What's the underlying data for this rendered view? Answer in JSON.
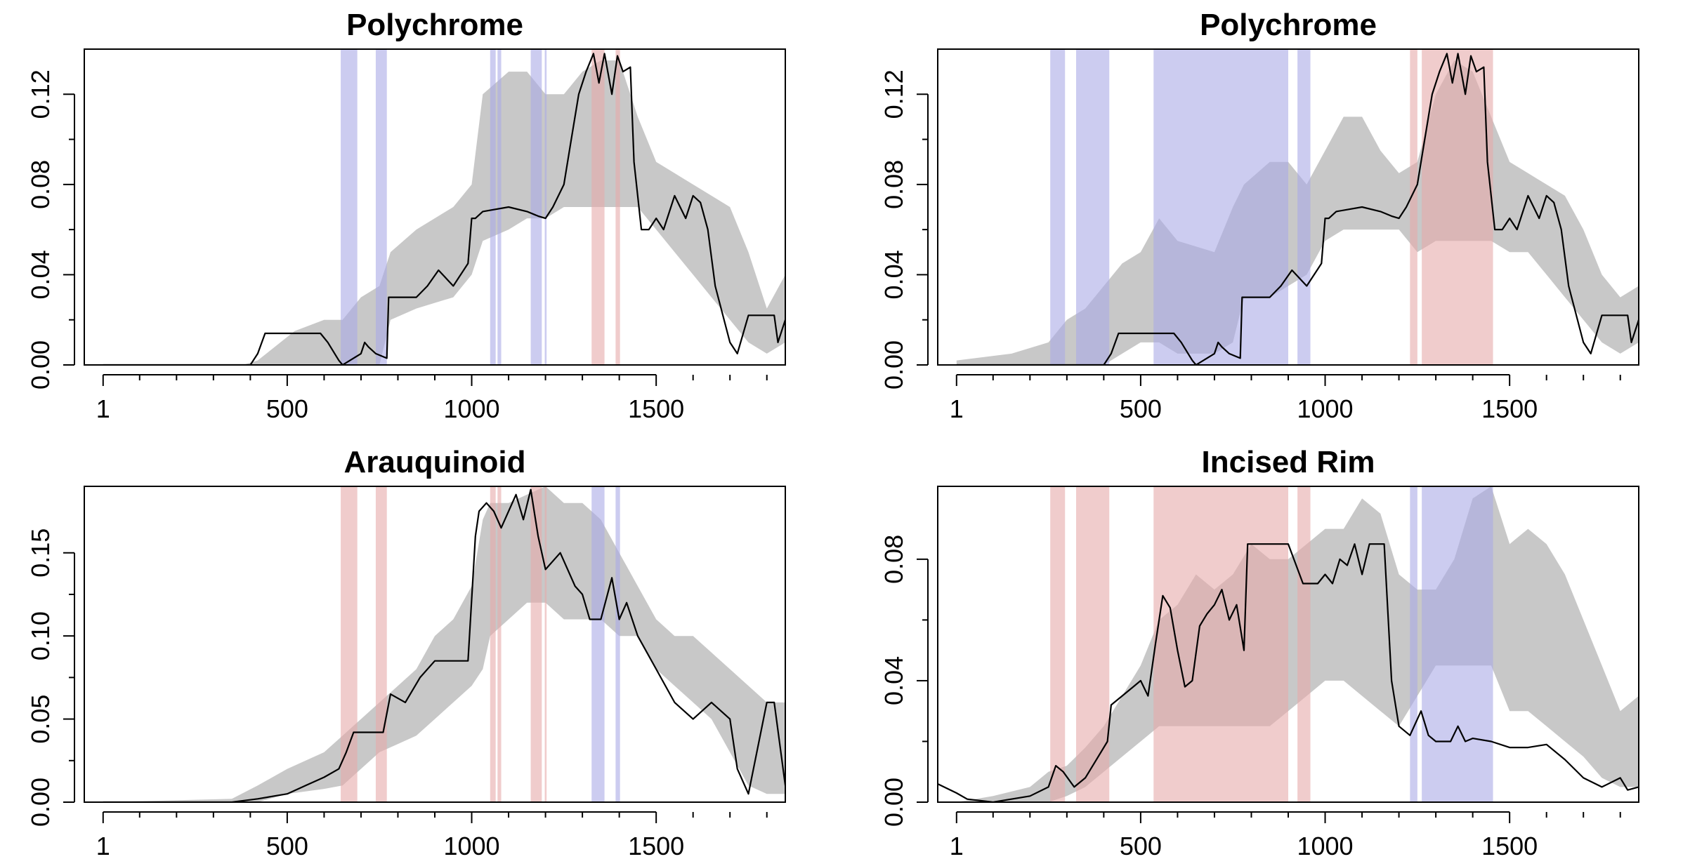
{
  "colors": {
    "ribbon": "#c8c8c8",
    "mean_line": "#000000",
    "blue_band": "#aaaae6",
    "red_band": "#e6aaaa",
    "frame": "#000000"
  },
  "chart_data": [
    {
      "type": "area",
      "title": "Polychrome",
      "xlim": [
        -50,
        1850
      ],
      "ylim": [
        0,
        0.14
      ],
      "x_ticks": [
        1,
        500,
        1000,
        1500
      ],
      "x_tick_labels": [
        "1",
        "500",
        "1000",
        "1500"
      ],
      "y_ticks": [
        0,
        0.04,
        0.08,
        0.12
      ],
      "y_tick_labels": [
        "0.00",
        "0.04",
        "0.08",
        "0.12"
      ],
      "bands": [
        {
          "from": 645,
          "to": 690,
          "color": "blue"
        },
        {
          "from": 740,
          "to": 770,
          "color": "blue"
        },
        {
          "from": 1050,
          "to": 1065,
          "color": "blue"
        },
        {
          "from": 1070,
          "to": 1080,
          "color": "blue"
        },
        {
          "from": 1160,
          "to": 1190,
          "color": "blue"
        },
        {
          "from": 1198,
          "to": 1203,
          "color": "blue"
        },
        {
          "from": 1325,
          "to": 1360,
          "color": "red"
        },
        {
          "from": 1390,
          "to": 1402,
          "color": "red"
        }
      ],
      "ribbon": {
        "x": [
          1,
          380,
          420,
          520,
          600,
          650,
          700,
          750,
          780,
          850,
          950,
          1000,
          1030,
          1100,
          1150,
          1200,
          1250,
          1300,
          1350,
          1400,
          1450,
          1500,
          1550,
          1600,
          1650,
          1700,
          1750,
          1800,
          1850
        ],
        "lower": [
          0,
          0,
          0,
          0,
          0,
          0,
          0,
          0,
          0.02,
          0.025,
          0.03,
          0.04,
          0.055,
          0.06,
          0.065,
          0.065,
          0.07,
          0.07,
          0.07,
          0.07,
          0.07,
          0.06,
          0.05,
          0.04,
          0.03,
          0.02,
          0.01,
          0.005,
          0.01
        ],
        "upper": [
          0,
          0,
          0.002,
          0.015,
          0.02,
          0.02,
          0.03,
          0.035,
          0.05,
          0.06,
          0.07,
          0.08,
          0.12,
          0.13,
          0.13,
          0.12,
          0.12,
          0.13,
          0.135,
          0.135,
          0.11,
          0.09,
          0.085,
          0.08,
          0.075,
          0.07,
          0.05,
          0.025,
          0.04
        ]
      },
      "mean": {
        "x": [
          1,
          400,
          420,
          440,
          590,
          610,
          640,
          650,
          700,
          710,
          720,
          740,
          770,
          775,
          800,
          850,
          880,
          910,
          950,
          990,
          1000,
          1010,
          1030,
          1100,
          1150,
          1180,
          1200,
          1220,
          1250,
          1270,
          1290,
          1310,
          1330,
          1345,
          1360,
          1380,
          1395,
          1410,
          1430,
          1440,
          1460,
          1480,
          1500,
          1520,
          1550,
          1580,
          1600,
          1620,
          1640,
          1660,
          1700,
          1720,
          1750,
          1800,
          1820,
          1830,
          1850
        ],
        "y": [
          0,
          0,
          0.005,
          0.014,
          0.014,
          0.01,
          0.002,
          0,
          0.005,
          0.01,
          0.008,
          0.005,
          0.003,
          0.03,
          0.03,
          0.03,
          0.035,
          0.042,
          0.035,
          0.045,
          0.065,
          0.065,
          0.068,
          0.07,
          0.068,
          0.066,
          0.065,
          0.07,
          0.08,
          0.1,
          0.12,
          0.13,
          0.138,
          0.125,
          0.138,
          0.12,
          0.137,
          0.13,
          0.132,
          0.09,
          0.06,
          0.06,
          0.065,
          0.06,
          0.075,
          0.065,
          0.075,
          0.072,
          0.06,
          0.035,
          0.01,
          0.005,
          0.022,
          0.022,
          0.022,
          0.01,
          0.02
        ]
      }
    },
    {
      "type": "area",
      "title": "Polychrome",
      "xlim": [
        -50,
        1850
      ],
      "ylim": [
        0,
        0.14
      ],
      "x_ticks": [
        1,
        500,
        1000,
        1500
      ],
      "x_tick_labels": [
        "1",
        "500",
        "1000",
        "1500"
      ],
      "y_ticks": [
        0,
        0.04,
        0.08,
        0.12
      ],
      "y_tick_labels": [
        "0.00",
        "0.04",
        "0.08",
        "0.12"
      ],
      "bands": [
        {
          "from": 255,
          "to": 295,
          "color": "blue"
        },
        {
          "from": 325,
          "to": 415,
          "color": "blue"
        },
        {
          "from": 535,
          "to": 900,
          "color": "blue"
        },
        {
          "from": 925,
          "to": 960,
          "color": "blue"
        },
        {
          "from": 1230,
          "to": 1250,
          "color": "red"
        },
        {
          "from": 1262,
          "to": 1455,
          "color": "red"
        }
      ],
      "ribbon": {
        "x": [
          1,
          150,
          250,
          300,
          350,
          400,
          450,
          500,
          550,
          600,
          700,
          750,
          780,
          850,
          900,
          950,
          1000,
          1050,
          1100,
          1150,
          1200,
          1250,
          1300,
          1350,
          1400,
          1450,
          1500,
          1550,
          1600,
          1650,
          1700,
          1750,
          1800,
          1850
        ],
        "lower": [
          0,
          0,
          0,
          0,
          0,
          0,
          0.005,
          0.01,
          0.01,
          0.005,
          0.005,
          0.01,
          0.03,
          0.03,
          0.035,
          0.04,
          0.055,
          0.06,
          0.06,
          0.06,
          0.06,
          0.05,
          0.055,
          0.055,
          0.055,
          0.055,
          0.05,
          0.05,
          0.04,
          0.03,
          0.02,
          0.01,
          0.005,
          0.01
        ],
        "upper": [
          0.002,
          0.005,
          0.01,
          0.02,
          0.025,
          0.035,
          0.045,
          0.05,
          0.065,
          0.055,
          0.05,
          0.07,
          0.08,
          0.09,
          0.09,
          0.08,
          0.095,
          0.11,
          0.11,
          0.095,
          0.085,
          0.09,
          0.12,
          0.135,
          0.13,
          0.11,
          0.09,
          0.085,
          0.08,
          0.075,
          0.06,
          0.04,
          0.03,
          0.035
        ]
      },
      "mean": {
        "x": [
          1,
          350,
          400,
          420,
          440,
          590,
          610,
          640,
          650,
          700,
          710,
          720,
          740,
          770,
          775,
          800,
          850,
          880,
          910,
          950,
          990,
          1000,
          1010,
          1030,
          1100,
          1150,
          1180,
          1200,
          1220,
          1250,
          1270,
          1290,
          1310,
          1330,
          1345,
          1360,
          1380,
          1395,
          1410,
          1430,
          1440,
          1460,
          1480,
          1500,
          1520,
          1550,
          1580,
          1600,
          1620,
          1640,
          1660,
          1700,
          1720,
          1750,
          1800,
          1820,
          1830,
          1850
        ],
        "y": [
          0,
          0,
          0,
          0.005,
          0.014,
          0.014,
          0.01,
          0.002,
          0,
          0.005,
          0.01,
          0.008,
          0.005,
          0.003,
          0.03,
          0.03,
          0.03,
          0.035,
          0.042,
          0.035,
          0.045,
          0.065,
          0.065,
          0.068,
          0.07,
          0.068,
          0.066,
          0.065,
          0.07,
          0.08,
          0.1,
          0.12,
          0.13,
          0.138,
          0.125,
          0.138,
          0.12,
          0.137,
          0.13,
          0.132,
          0.09,
          0.06,
          0.06,
          0.065,
          0.06,
          0.075,
          0.065,
          0.075,
          0.072,
          0.06,
          0.035,
          0.01,
          0.005,
          0.022,
          0.022,
          0.022,
          0.01,
          0.02
        ]
      }
    },
    {
      "type": "area",
      "title": "Arauquinoid",
      "xlim": [
        -50,
        1850
      ],
      "ylim": [
        0,
        0.19
      ],
      "x_ticks": [
        1,
        500,
        1000,
        1500
      ],
      "x_tick_labels": [
        "1",
        "500",
        "1000",
        "1500"
      ],
      "y_ticks": [
        0,
        0.05,
        0.1,
        0.15
      ],
      "y_tick_labels": [
        "0.00",
        "0.05",
        "0.10",
        "0.15"
      ],
      "bands": [
        {
          "from": 645,
          "to": 690,
          "color": "red"
        },
        {
          "from": 740,
          "to": 770,
          "color": "red"
        },
        {
          "from": 1050,
          "to": 1065,
          "color": "red"
        },
        {
          "from": 1070,
          "to": 1080,
          "color": "red"
        },
        {
          "from": 1160,
          "to": 1190,
          "color": "red"
        },
        {
          "from": 1198,
          "to": 1203,
          "color": "red"
        },
        {
          "from": 1325,
          "to": 1360,
          "color": "blue"
        },
        {
          "from": 1390,
          "to": 1402,
          "color": "blue"
        }
      ],
      "ribbon": {
        "x": [
          1,
          350,
          420,
          500,
          600,
          650,
          700,
          750,
          800,
          850,
          900,
          950,
          1000,
          1030,
          1050,
          1100,
          1150,
          1200,
          1250,
          1300,
          1350,
          1400,
          1450,
          1500,
          1550,
          1600,
          1650,
          1700,
          1750,
          1800,
          1850
        ],
        "lower": [
          0,
          0,
          0,
          0.005,
          0.008,
          0.01,
          0.02,
          0.03,
          0.035,
          0.04,
          0.05,
          0.06,
          0.07,
          0.08,
          0.1,
          0.11,
          0.12,
          0.12,
          0.11,
          0.11,
          0.11,
          0.1,
          0.1,
          0.08,
          0.07,
          0.06,
          0.05,
          0.03,
          0.01,
          0.005,
          0.005
        ],
        "upper": [
          0,
          0.002,
          0.01,
          0.02,
          0.03,
          0.04,
          0.05,
          0.06,
          0.07,
          0.08,
          0.1,
          0.11,
          0.13,
          0.17,
          0.18,
          0.18,
          0.185,
          0.19,
          0.18,
          0.18,
          0.17,
          0.15,
          0.13,
          0.11,
          0.1,
          0.1,
          0.09,
          0.08,
          0.07,
          0.06,
          0.06
        ]
      },
      "mean": {
        "x": [
          1,
          350,
          420,
          500,
          550,
          600,
          640,
          660,
          680,
          720,
          760,
          780,
          820,
          860,
          900,
          950,
          990,
          1010,
          1020,
          1040,
          1060,
          1080,
          1120,
          1140,
          1160,
          1180,
          1200,
          1240,
          1280,
          1300,
          1320,
          1350,
          1380,
          1400,
          1420,
          1450,
          1500,
          1550,
          1600,
          1650,
          1700,
          1720,
          1750,
          1800,
          1820,
          1850
        ],
        "y": [
          0,
          0,
          0.002,
          0.005,
          0.01,
          0.015,
          0.02,
          0.03,
          0.042,
          0.042,
          0.042,
          0.065,
          0.06,
          0.075,
          0.085,
          0.085,
          0.085,
          0.16,
          0.175,
          0.18,
          0.175,
          0.165,
          0.185,
          0.17,
          0.188,
          0.16,
          0.14,
          0.15,
          0.13,
          0.125,
          0.11,
          0.11,
          0.135,
          0.11,
          0.12,
          0.1,
          0.08,
          0.06,
          0.05,
          0.06,
          0.05,
          0.02,
          0.005,
          0.06,
          0.06,
          0.01
        ]
      }
    },
    {
      "type": "area",
      "title": "Incised Rim",
      "xlim": [
        -50,
        1850
      ],
      "ylim": [
        0,
        0.104
      ],
      "x_ticks": [
        1,
        500,
        1000,
        1500
      ],
      "x_tick_labels": [
        "1",
        "500",
        "1000",
        "1500"
      ],
      "y_ticks": [
        0,
        0.04,
        0.08
      ],
      "y_tick_labels": [
        "0.00",
        "0.04",
        "0.08"
      ],
      "bands": [
        {
          "from": 255,
          "to": 295,
          "color": "red"
        },
        {
          "from": 325,
          "to": 415,
          "color": "red"
        },
        {
          "from": 535,
          "to": 900,
          "color": "red"
        },
        {
          "from": 925,
          "to": 960,
          "color": "red"
        },
        {
          "from": 1230,
          "to": 1250,
          "color": "blue"
        },
        {
          "from": 1262,
          "to": 1455,
          "color": "blue"
        }
      ],
      "ribbon": {
        "x": [
          1,
          100,
          200,
          250,
          300,
          350,
          400,
          450,
          500,
          550,
          600,
          650,
          700,
          750,
          800,
          850,
          900,
          950,
          1000,
          1050,
          1100,
          1150,
          1200,
          1250,
          1300,
          1350,
          1400,
          1450,
          1500,
          1550,
          1600,
          1650,
          1700,
          1750,
          1800,
          1850
        ],
        "lower": [
          0,
          0,
          0,
          0,
          0.002,
          0.005,
          0.01,
          0.015,
          0.02,
          0.025,
          0.025,
          0.025,
          0.025,
          0.025,
          0.025,
          0.025,
          0.03,
          0.035,
          0.04,
          0.04,
          0.035,
          0.03,
          0.025,
          0.035,
          0.045,
          0.045,
          0.045,
          0.045,
          0.03,
          0.03,
          0.025,
          0.02,
          0.015,
          0.008,
          0.005,
          0.005
        ],
        "upper": [
          0,
          0.002,
          0.005,
          0.01,
          0.012,
          0.018,
          0.025,
          0.035,
          0.045,
          0.06,
          0.065,
          0.075,
          0.07,
          0.075,
          0.085,
          0.08,
          0.08,
          0.085,
          0.09,
          0.09,
          0.1,
          0.095,
          0.075,
          0.07,
          0.07,
          0.08,
          0.1,
          0.104,
          0.085,
          0.09,
          0.085,
          0.075,
          0.06,
          0.045,
          0.03,
          0.035
        ]
      },
      "mean": {
        "x": [
          -50,
          1,
          30,
          100,
          200,
          250,
          270,
          290,
          320,
          350,
          380,
          410,
          420,
          450,
          480,
          500,
          520,
          540,
          560,
          580,
          600,
          620,
          640,
          660,
          680,
          700,
          720,
          740,
          760,
          780,
          790,
          800,
          900,
          940,
          980,
          1000,
          1020,
          1040,
          1060,
          1080,
          1100,
          1120,
          1140,
          1160,
          1180,
          1200,
          1230,
          1260,
          1280,
          1300,
          1340,
          1360,
          1380,
          1400,
          1450,
          1500,
          1550,
          1600,
          1650,
          1700,
          1750,
          1800,
          1820,
          1850
        ],
        "y": [
          0.006,
          0.003,
          0.001,
          0,
          0.002,
          0.005,
          0.012,
          0.01,
          0.005,
          0.008,
          0.014,
          0.02,
          0.032,
          0.035,
          0.038,
          0.04,
          0.035,
          0.052,
          0.068,
          0.064,
          0.05,
          0.038,
          0.04,
          0.058,
          0.062,
          0.065,
          0.07,
          0.06,
          0.065,
          0.05,
          0.085,
          0.085,
          0.085,
          0.072,
          0.072,
          0.075,
          0.072,
          0.08,
          0.078,
          0.085,
          0.075,
          0.085,
          0.085,
          0.085,
          0.04,
          0.025,
          0.022,
          0.03,
          0.022,
          0.02,
          0.02,
          0.025,
          0.02,
          0.021,
          0.02,
          0.018,
          0.018,
          0.019,
          0.014,
          0.008,
          0.005,
          0.008,
          0.004,
          0.005
        ]
      }
    }
  ]
}
